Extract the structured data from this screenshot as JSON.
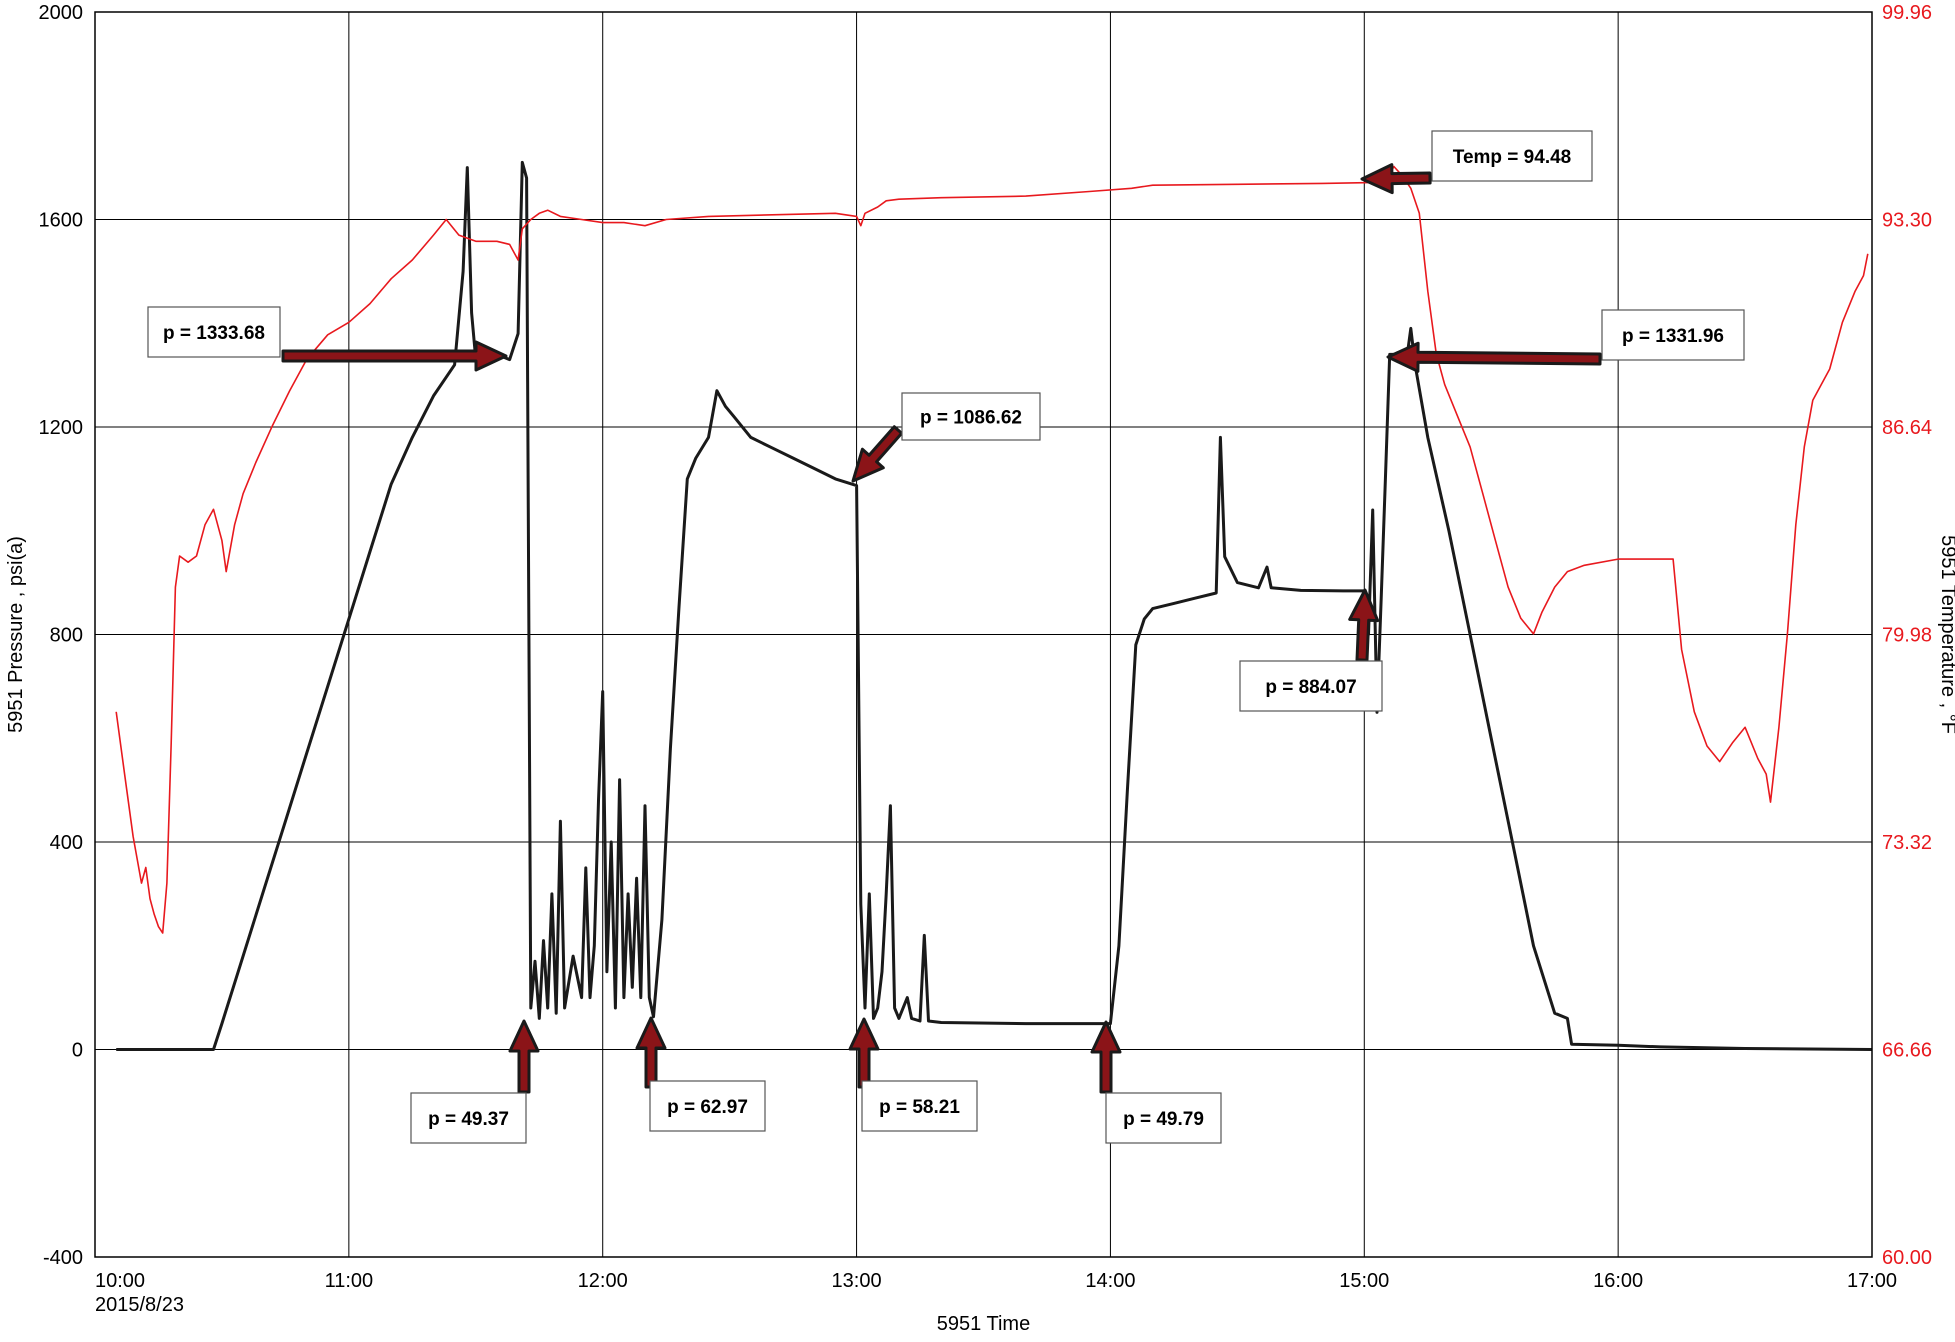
{
  "colors": {
    "pressure": "#1a1a1a",
    "temperature": "#e8191e",
    "arrow_fill": "#8b1418",
    "grid": "#000000"
  },
  "chart_data": {
    "type": "line",
    "title": "",
    "xlabel": "5951 Time",
    "ylabel": "5951 Pressure , psi(a)",
    "y2label": "5951 Temperature , °F",
    "date_label": "2015/8/23",
    "xlim": [
      "10:00",
      "17:00"
    ],
    "x_ticks": [
      "10:00",
      "11:00",
      "12:00",
      "13:00",
      "14:00",
      "15:00",
      "16:00",
      "17:00"
    ],
    "ylim": [
      -400,
      2000
    ],
    "y_ticks": [
      "2000",
      "1600",
      "1200",
      "800",
      "400",
      "0",
      "-400"
    ],
    "y2lim": [
      60.0,
      99.96
    ],
    "y2_ticks": [
      "99.96",
      "93.30",
      "86.64",
      "79.98",
      "73.32",
      "66.66",
      "60.00"
    ],
    "grid": true,
    "series": [
      {
        "axis": "left",
        "color": "#1a1a1a",
        "points": [
          [
            "10:05",
            0
          ],
          [
            "10:20",
            0
          ],
          [
            "10:28",
            0
          ],
          [
            "10:30",
            50
          ],
          [
            "10:35",
            180
          ],
          [
            "10:40",
            310
          ],
          [
            "10:45",
            440
          ],
          [
            "10:50",
            570
          ],
          [
            "10:55",
            700
          ],
          [
            "11:00",
            830
          ],
          [
            "11:05",
            960
          ],
          [
            "11:10",
            1090
          ],
          [
            "11:15",
            1180
          ],
          [
            "11:20",
            1260
          ],
          [
            "11:25",
            1320
          ],
          [
            "11:27",
            1500
          ],
          [
            "11:28",
            1700
          ],
          [
            "11:29",
            1420
          ],
          [
            "11:30",
            1330
          ],
          [
            "11:32",
            1340
          ],
          [
            "11:35",
            1340
          ],
          [
            "11:38",
            1330
          ],
          [
            "11:40",
            1380
          ],
          [
            "11:41",
            1710
          ],
          [
            "11:42",
            1680
          ],
          [
            "11:43",
            80
          ],
          [
            "11:44",
            170
          ],
          [
            "11:45",
            60
          ],
          [
            "11:46",
            210
          ],
          [
            "11:47",
            80
          ],
          [
            "11:48",
            300
          ],
          [
            "11:49",
            70
          ],
          [
            "11:50",
            440
          ],
          [
            "11:51",
            80
          ],
          [
            "11:53",
            180
          ],
          [
            "11:55",
            100
          ],
          [
            "11:56",
            350
          ],
          [
            "11:57",
            100
          ],
          [
            "11:58",
            200
          ],
          [
            "11:59",
            480
          ],
          [
            "12:00",
            690
          ],
          [
            "12:01",
            150
          ],
          [
            "12:02",
            400
          ],
          [
            "12:03",
            80
          ],
          [
            "12:04",
            520
          ],
          [
            "12:05",
            100
          ],
          [
            "12:06",
            300
          ],
          [
            "12:07",
            120
          ],
          [
            "12:08",
            330
          ],
          [
            "12:09",
            100
          ],
          [
            "12:10",
            470
          ],
          [
            "12:11",
            100
          ],
          [
            "12:12",
            63
          ],
          [
            "12:14",
            250
          ],
          [
            "12:16",
            580
          ],
          [
            "12:18",
            850
          ],
          [
            "12:20",
            1100
          ],
          [
            "12:22",
            1140
          ],
          [
            "12:25",
            1180
          ],
          [
            "12:27",
            1270
          ],
          [
            "12:29",
            1240
          ],
          [
            "12:31",
            1220
          ],
          [
            "12:35",
            1180
          ],
          [
            "12:40",
            1160
          ],
          [
            "12:45",
            1140
          ],
          [
            "12:50",
            1120
          ],
          [
            "12:55",
            1100
          ],
          [
            "13:00",
            1087
          ],
          [
            "13:01",
            280
          ],
          [
            "13:02",
            80
          ],
          [
            "13:03",
            300
          ],
          [
            "13:04",
            60
          ],
          [
            "13:05",
            80
          ],
          [
            "13:06",
            150
          ],
          [
            "13:07",
            300
          ],
          [
            "13:08",
            470
          ],
          [
            "13:09",
            80
          ],
          [
            "13:10",
            60
          ],
          [
            "13:12",
            100
          ],
          [
            "13:13",
            60
          ],
          [
            "13:15",
            55
          ],
          [
            "13:16",
            220
          ],
          [
            "13:17",
            55
          ],
          [
            "13:20",
            52
          ],
          [
            "13:40",
            50
          ],
          [
            "14:00",
            50
          ],
          [
            "14:02",
            200
          ],
          [
            "14:04",
            500
          ],
          [
            "14:06",
            780
          ],
          [
            "14:08",
            830
          ],
          [
            "14:10",
            850
          ],
          [
            "14:15",
            860
          ],
          [
            "14:20",
            870
          ],
          [
            "14:25",
            880
          ],
          [
            "14:26",
            1180
          ],
          [
            "14:27",
            950
          ],
          [
            "14:30",
            900
          ],
          [
            "14:35",
            890
          ],
          [
            "14:37",
            930
          ],
          [
            "14:38",
            890
          ],
          [
            "14:45",
            885
          ],
          [
            "14:55",
            884
          ],
          [
            "15:00",
            884
          ],
          [
            "15:01",
            800
          ],
          [
            "15:02",
            1040
          ],
          [
            "15:03",
            650
          ],
          [
            "15:04",
            870
          ],
          [
            "15:05",
            1100
          ],
          [
            "15:06",
            1340
          ],
          [
            "15:08",
            1340
          ],
          [
            "15:10",
            1330
          ],
          [
            "15:11",
            1390
          ],
          [
            "15:12",
            1320
          ],
          [
            "15:15",
            1180
          ],
          [
            "15:20",
            1000
          ],
          [
            "15:25",
            800
          ],
          [
            "15:30",
            600
          ],
          [
            "15:35",
            400
          ],
          [
            "15:40",
            200
          ],
          [
            "15:45",
            70
          ],
          [
            "15:48",
            60
          ],
          [
            "15:49",
            10
          ],
          [
            "16:00",
            8
          ],
          [
            "16:10",
            5
          ],
          [
            "16:30",
            2
          ],
          [
            "17:00",
            0
          ]
        ]
      },
      {
        "axis": "right",
        "color": "#e8191e",
        "points": [
          [
            "10:05",
            77.5
          ],
          [
            "10:07",
            75.5
          ],
          [
            "10:09",
            73.5
          ],
          [
            "10:11",
            72.0
          ],
          [
            "10:12",
            72.5
          ],
          [
            "10:13",
            71.5
          ],
          [
            "10:14",
            71.0
          ],
          [
            "10:15",
            70.6
          ],
          [
            "10:16",
            70.4
          ],
          [
            "10:17",
            72.0
          ],
          [
            "10:18",
            76.5
          ],
          [
            "10:19",
            81.5
          ],
          [
            "10:20",
            82.5
          ],
          [
            "10:22",
            82.3
          ],
          [
            "10:24",
            82.5
          ],
          [
            "10:26",
            83.5
          ],
          [
            "10:28",
            84.0
          ],
          [
            "10:30",
            83.0
          ],
          [
            "10:31",
            82.0
          ],
          [
            "10:33",
            83.5
          ],
          [
            "10:35",
            84.5
          ],
          [
            "10:38",
            85.5
          ],
          [
            "10:42",
            86.7
          ],
          [
            "10:46",
            87.8
          ],
          [
            "10:50",
            88.8
          ],
          [
            "10:55",
            89.6
          ],
          [
            "11:00",
            90.0
          ],
          [
            "11:05",
            90.6
          ],
          [
            "11:10",
            91.4
          ],
          [
            "11:15",
            92.0
          ],
          [
            "11:20",
            92.8
          ],
          [
            "11:23",
            93.3
          ],
          [
            "11:26",
            92.8
          ],
          [
            "11:30",
            92.6
          ],
          [
            "11:35",
            92.6
          ],
          [
            "11:38",
            92.5
          ],
          [
            "11:40",
            92.0
          ],
          [
            "11:41",
            93.0
          ],
          [
            "11:43",
            93.3
          ],
          [
            "11:45",
            93.5
          ],
          [
            "11:47",
            93.6
          ],
          [
            "11:50",
            93.4
          ],
          [
            "11:55",
            93.3
          ],
          [
            "12:00",
            93.2
          ],
          [
            "12:05",
            93.2
          ],
          [
            "12:10",
            93.1
          ],
          [
            "12:15",
            93.3
          ],
          [
            "12:25",
            93.4
          ],
          [
            "12:40",
            93.45
          ],
          [
            "12:55",
            93.5
          ],
          [
            "13:00",
            93.4
          ],
          [
            "13:01",
            93.1
          ],
          [
            "13:02",
            93.5
          ],
          [
            "13:05",
            93.7
          ],
          [
            "13:07",
            93.9
          ],
          [
            "13:10",
            93.95
          ],
          [
            "13:20",
            94.0
          ],
          [
            "13:40",
            94.05
          ],
          [
            "13:55",
            94.2
          ],
          [
            "14:05",
            94.3
          ],
          [
            "14:10",
            94.4
          ],
          [
            "14:30",
            94.43
          ],
          [
            "14:50",
            94.46
          ],
          [
            "15:00",
            94.48
          ],
          [
            "15:05",
            94.5
          ],
          [
            "15:07",
            95.0
          ],
          [
            "15:09",
            94.7
          ],
          [
            "15:11",
            94.3
          ],
          [
            "15:13",
            93.5
          ],
          [
            "15:15",
            91.0
          ],
          [
            "15:17",
            89.0
          ],
          [
            "15:19",
            88.0
          ],
          [
            "15:22",
            87.0
          ],
          [
            "15:25",
            86.0
          ],
          [
            "15:28",
            84.5
          ],
          [
            "15:31",
            83.0
          ],
          [
            "15:34",
            81.5
          ],
          [
            "15:37",
            80.5
          ],
          [
            "15:40",
            80.0
          ],
          [
            "15:42",
            80.7
          ],
          [
            "15:45",
            81.5
          ],
          [
            "15:48",
            82.0
          ],
          [
            "15:52",
            82.2
          ],
          [
            "16:00",
            82.4
          ],
          [
            "16:10",
            82.4
          ],
          [
            "16:13",
            82.4
          ],
          [
            "16:15",
            79.5
          ],
          [
            "16:18",
            77.5
          ],
          [
            "16:21",
            76.4
          ],
          [
            "16:24",
            75.9
          ],
          [
            "16:27",
            76.5
          ],
          [
            "16:30",
            77.0
          ],
          [
            "16:33",
            76.0
          ],
          [
            "16:35",
            75.5
          ],
          [
            "16:36",
            74.6
          ],
          [
            "16:38",
            77.0
          ],
          [
            "16:40",
            80.0
          ],
          [
            "16:42",
            83.5
          ],
          [
            "16:44",
            86.0
          ],
          [
            "16:46",
            87.5
          ],
          [
            "16:50",
            88.5
          ],
          [
            "16:53",
            90.0
          ],
          [
            "16:56",
            91.0
          ],
          [
            "16:58",
            91.5
          ],
          [
            "16:59",
            92.2
          ]
        ]
      }
    ],
    "annotations": [
      {
        "text": "p = 1333.68"
      },
      {
        "text": "p = 1086.62"
      },
      {
        "text": "Temp = 94.48"
      },
      {
        "text": "p = 1331.96"
      },
      {
        "text": "p = 884.07"
      },
      {
        "text": "p = 49.37"
      },
      {
        "text": "p = 62.97"
      },
      {
        "text": "p = 58.21"
      },
      {
        "text": "p = 49.79"
      }
    ]
  }
}
